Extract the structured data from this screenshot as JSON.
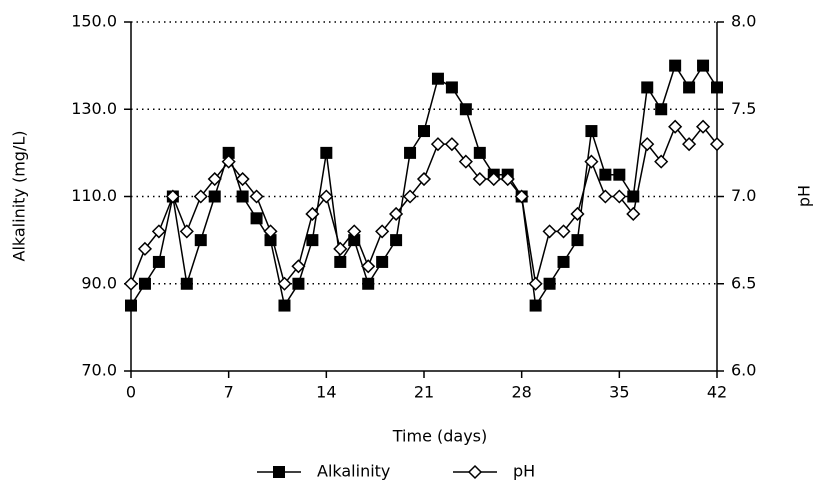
{
  "chart_data": {
    "type": "line",
    "x_label": "Time (days)",
    "y_label": "Alkalinity (mg/L)",
    "y2_label": "pH",
    "x": [
      0,
      1,
      2,
      3,
      4,
      5,
      6,
      7,
      8,
      9,
      10,
      11,
      12,
      13,
      14,
      15,
      16,
      17,
      18,
      19,
      20,
      21,
      22,
      23,
      24,
      25,
      26,
      27,
      28,
      29,
      30,
      31,
      32,
      33,
      34,
      35,
      36,
      37,
      38,
      39,
      40,
      41,
      42
    ],
    "series": [
      {
        "name": "Alkalinity",
        "color": "#000000",
        "marker": "square",
        "axis": "y",
        "values": [
          85,
          90,
          95,
          110,
          90,
          100,
          110,
          120,
          110,
          105,
          100,
          85,
          90,
          100,
          120,
          95,
          100,
          90,
          95,
          100,
          120,
          125,
          137,
          135,
          130,
          120,
          115,
          115,
          110,
          85,
          90,
          95,
          100,
          125,
          115,
          115,
          110,
          135,
          130,
          140,
          135,
          140,
          135
        ]
      },
      {
        "name": "pH",
        "color": "#000000",
        "marker": "diamond",
        "axis": "y2",
        "values": [
          6.5,
          6.7,
          6.8,
          7.0,
          6.8,
          7.0,
          7.1,
          7.2,
          7.1,
          7.0,
          6.8,
          6.5,
          6.6,
          6.9,
          7.0,
          6.7,
          6.8,
          6.6,
          6.8,
          6.9,
          7.0,
          7.1,
          7.3,
          7.3,
          7.2,
          7.1,
          7.1,
          7.1,
          7.0,
          6.5,
          6.8,
          6.8,
          6.9,
          7.2,
          7.0,
          7.0,
          6.9,
          7.3,
          7.2,
          7.4,
          7.3,
          7.4,
          7.3
        ]
      }
    ],
    "xlim": [
      0,
      42
    ],
    "xticks": [
      0,
      7,
      14,
      21,
      28,
      35,
      42
    ],
    "ylim": [
      70,
      150
    ],
    "yticks": [
      {
        "value": 70,
        "label": "70.0"
      },
      {
        "value": 90,
        "label": "90.0"
      },
      {
        "value": 110,
        "label": "110.0"
      },
      {
        "value": 130,
        "label": "130.0"
      },
      {
        "value": 150,
        "label": "150.0"
      }
    ],
    "y2lim": [
      6,
      8
    ],
    "y2ticks": [
      {
        "value": 6,
        "label": "6.0"
      },
      6.5,
      {
        "value": 7,
        "label": "7.0"
      },
      7.5,
      {
        "value": 8,
        "label": "8.0"
      }
    ],
    "grid": true,
    "legend": "bottom"
  }
}
